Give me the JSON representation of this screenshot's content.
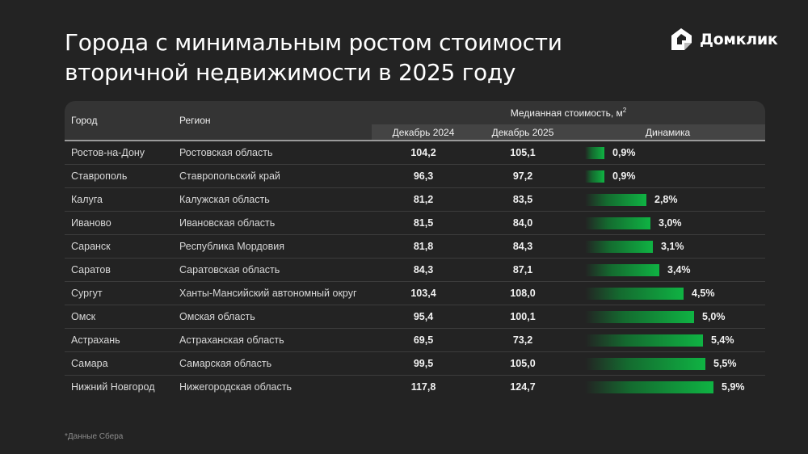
{
  "header": {
    "title_line1": "Города с минимальным ростом стоимости",
    "title_line2": "вторичной недвижимости в 2025 году",
    "logo_text": "Домклик",
    "logo_icon": "house-icon"
  },
  "table": {
    "columns": {
      "city": "Город",
      "region": "Регион",
      "group": "Медианная стоимость, м",
      "group_sup": "2",
      "dec2024": "Декабрь 2024",
      "dec2025": "Декабрь 2025",
      "dynamics": "Динамика"
    },
    "rows": [
      {
        "city": "Ростов-на-Дону",
        "region": "Ростовская область",
        "dec2024": "104,2",
        "dec2025": "105,1",
        "change": "0,9%",
        "change_value": 0.9
      },
      {
        "city": "Ставрополь",
        "region": "Ставропольский край",
        "dec2024": "96,3",
        "dec2025": "97,2",
        "change": "0,9%",
        "change_value": 0.9
      },
      {
        "city": "Калуга",
        "region": "Калужская область",
        "dec2024": "81,2",
        "dec2025": "83,5",
        "change": "2,8%",
        "change_value": 2.8
      },
      {
        "city": "Иваново",
        "region": "Ивановская область",
        "dec2024": "81,5",
        "dec2025": "84,0",
        "change": "3,0%",
        "change_value": 3.0
      },
      {
        "city": "Саранск",
        "region": "Республика Мордовия",
        "dec2024": "81,8",
        "dec2025": "84,3",
        "change": "3,1%",
        "change_value": 3.1
      },
      {
        "city": "Саратов",
        "region": "Саратовская область",
        "dec2024": "84,3",
        "dec2025": "87,1",
        "change": "3,4%",
        "change_value": 3.4
      },
      {
        "city": "Сургут",
        "region": "Ханты-Мансийский автономный округ",
        "dec2024": "103,4",
        "dec2025": "108,0",
        "change": "4,5%",
        "change_value": 4.5
      },
      {
        "city": "Омск",
        "region": "Омская область",
        "dec2024": "95,4",
        "dec2025": "100,1",
        "change": "5,0%",
        "change_value": 5.0
      },
      {
        "city": "Астрахань",
        "region": "Астраханская область",
        "dec2024": "69,5",
        "dec2025": "73,2",
        "change": "5,4%",
        "change_value": 5.4
      },
      {
        "city": "Самара",
        "region": "Самарская область",
        "dec2024": "99,5",
        "dec2025": "105,0",
        "change": "5,5%",
        "change_value": 5.5
      },
      {
        "city": "Нижний Новгород",
        "region": "Нижегородская область",
        "dec2024": "117,8",
        "dec2025": "124,7",
        "change": "5,9%",
        "change_value": 5.9
      }
    ]
  },
  "footnote": "*Данные Сбера",
  "colors": {
    "background": "#232323",
    "header": "#343434",
    "subheader": "#444444",
    "bar_end": "#0fb343",
    "bar_mid": "#146a2f"
  },
  "chart_data": {
    "type": "table",
    "title": "Города с минимальным ростом стоимости вторичной недвижимости в 2025 году",
    "columns": [
      "Город",
      "Регион",
      "Декабрь 2024",
      "Декабрь 2025",
      "Динамика"
    ],
    "group_header": "Медианная стоимость, м²",
    "categories": [
      "Ростов-на-Дону",
      "Ставрополь",
      "Калуга",
      "Иваново",
      "Саранск",
      "Саратов",
      "Сургут",
      "Омск",
      "Астрахань",
      "Самара",
      "Нижний Новгород"
    ],
    "series": [
      {
        "name": "Декабрь 2024",
        "values": [
          104.2,
          96.3,
          81.2,
          81.5,
          81.8,
          84.3,
          103.4,
          95.4,
          69.5,
          99.5,
          117.8
        ]
      },
      {
        "name": "Декабрь 2025",
        "values": [
          105.1,
          97.2,
          83.5,
          84.0,
          84.3,
          87.1,
          108.0,
          100.1,
          73.2,
          105.0,
          124.7
        ]
      },
      {
        "name": "Динамика, %",
        "values": [
          0.9,
          0.9,
          2.8,
          3.0,
          3.1,
          3.4,
          4.5,
          5.0,
          5.4,
          5.5,
          5.9
        ]
      }
    ],
    "annotations": [
      "*Данные Сбера"
    ]
  }
}
